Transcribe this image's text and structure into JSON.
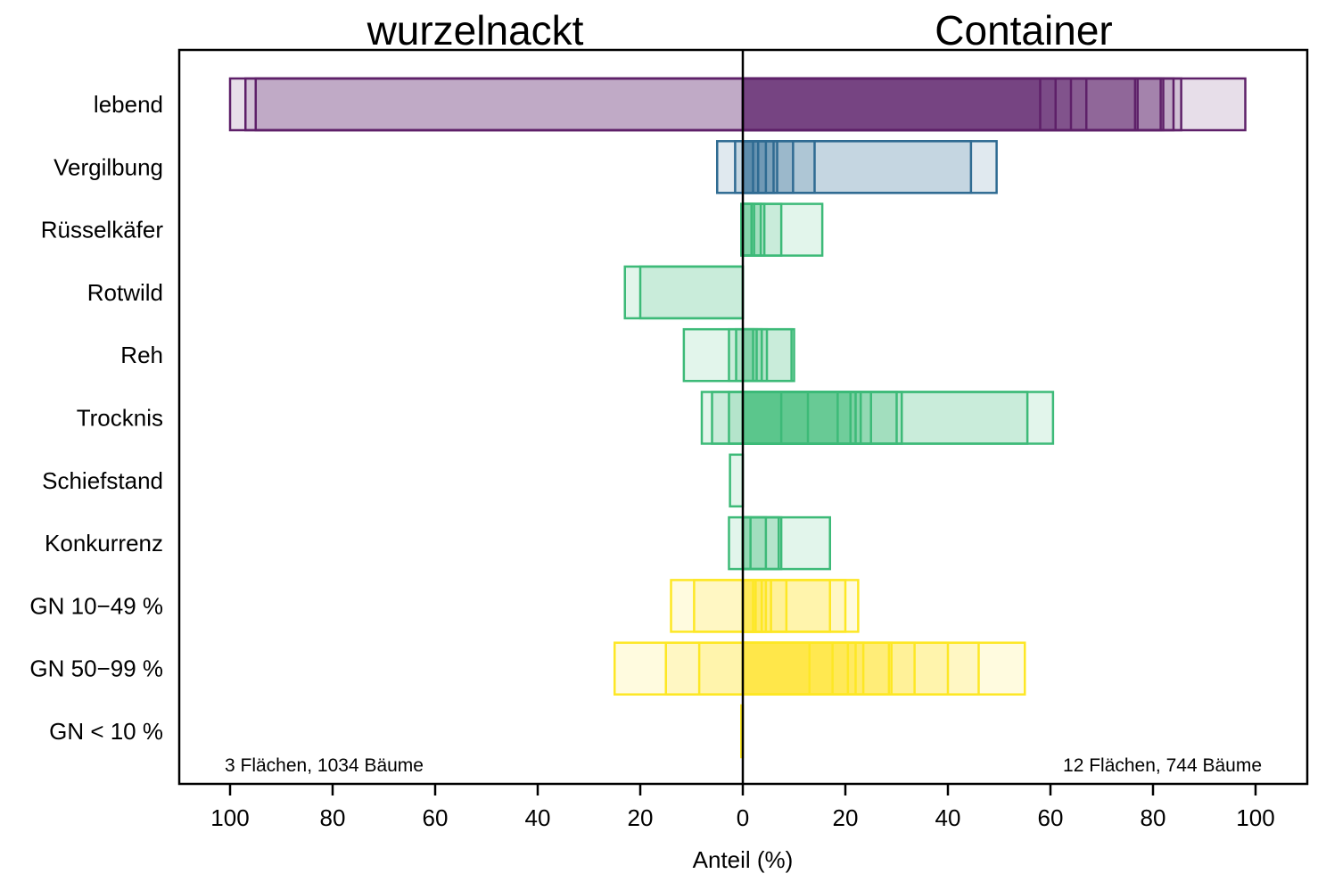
{
  "chart_data": {
    "type": "bar",
    "orientation": "horizontal-diverging",
    "xlabel": "Anteil (%)",
    "xlim": [
      -110,
      110
    ],
    "x_ticks": [
      -100,
      -80,
      -60,
      -40,
      -20,
      0,
      20,
      40,
      60,
      80,
      100
    ],
    "x_tick_labels": [
      "100",
      "80",
      "60",
      "40",
      "20",
      "0",
      "20",
      "40",
      "60",
      "80",
      "100"
    ],
    "categories": [
      "lebend",
      "Vergilbung",
      "Rüsselkäfer",
      "Rotwild",
      "Reh",
      "Trocknis",
      "Schiefstand",
      "Konkurrenz",
      "GN 10−49 %",
      "GN 50−99 %",
      "GN < 10 %"
    ],
    "left_title": "wurzelnackt",
    "right_title": "Container",
    "left_note": "3 Flächen, 1034 Bäume",
    "right_note": "12 Flächen, 744 Bäume",
    "colors": {
      "lebend": "#5e2069",
      "Vergilbung": "#2f6b92",
      "Rüsselkäfer": "#3dba78",
      "Rotwild": "#3dba78",
      "Reh": "#3dba78",
      "Trocknis": "#3dba78",
      "Schiefstand": "#3dba78",
      "Konkurrenz": "#3dba78",
      "GN 10−49 %": "#fde725",
      "GN 50−99 %": "#fde725",
      "GN < 10 %": "#fde725"
    },
    "series": [
      {
        "name": "wurzelnackt",
        "side": "left",
        "values": {
          "lebend": [
            100,
            97,
            95
          ],
          "Vergilbung": [
            5,
            1.5
          ],
          "Rüsselkäfer": [
            0.3
          ],
          "Rotwild": [
            23,
            20
          ],
          "Reh": [
            11.5,
            2.7,
            1.3
          ],
          "Trocknis": [
            8,
            6,
            2.7
          ],
          "Schiefstand": [
            2.5
          ],
          "Konkurrenz": [
            2.7
          ],
          "GN 10−49 %": [
            14,
            9.5
          ],
          "GN 50−99 %": [
            25,
            15,
            8.5
          ],
          "GN < 10 %": [
            0.3
          ]
        }
      },
      {
        "name": "Container",
        "side": "right",
        "values": {
          "lebend": [
            98,
            85.5,
            84,
            82,
            81.5,
            77,
            76.5,
            67,
            64,
            61,
            58
          ],
          "Vergilbung": [
            49.5,
            44.5,
            14,
            9.8,
            6.7,
            6,
            4.5,
            3,
            2
          ],
          "Rüsselkäfer": [
            15.5,
            7.5,
            4.2,
            3.5,
            2.2,
            1.7
          ],
          "Rotwild": [],
          "Reh": [
            10,
            9.5,
            4.7,
            3.7,
            2.7,
            2
          ],
          "Trocknis": [
            60.5,
            55.5,
            31,
            30,
            25,
            23,
            22,
            21,
            18.5,
            12.7,
            7.5
          ],
          "Schiefstand": [],
          "Konkurrenz": [
            17,
            7.5,
            7,
            4.5,
            1.5
          ],
          "GN 10−49 %": [
            22.5,
            20,
            17,
            8.5,
            5.5,
            4.5,
            3.7,
            2.5,
            2
          ],
          "GN 50−99 %": [
            55,
            46,
            40,
            33.5,
            29,
            28.5,
            23.5,
            22,
            20.5,
            17.5,
            13
          ]
        }
      }
    ]
  }
}
